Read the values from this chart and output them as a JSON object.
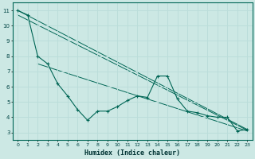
{
  "xlabel": "Humidex (Indice chaleur)",
  "background_color": "#cce8e4",
  "grid_color": "#bbddda",
  "line_color": "#006655",
  "xlim": [
    -0.5,
    23.5
  ],
  "ylim": [
    2.5,
    11.5
  ],
  "yticks": [
    3,
    4,
    5,
    6,
    7,
    8,
    9,
    10,
    11
  ],
  "xticks": [
    0,
    1,
    2,
    3,
    4,
    5,
    6,
    7,
    8,
    9,
    10,
    11,
    12,
    13,
    14,
    15,
    16,
    17,
    18,
    19,
    20,
    21,
    22,
    23
  ],
  "series1_x": [
    0,
    1,
    2,
    3,
    4,
    5,
    6,
    7,
    8,
    9,
    10,
    11,
    12,
    13,
    14,
    15,
    16,
    17,
    18,
    19,
    20,
    21,
    22,
    23
  ],
  "series1_y": [
    11.0,
    10.7,
    8.0,
    7.5,
    6.2,
    5.4,
    4.5,
    3.8,
    4.4,
    4.4,
    4.7,
    5.1,
    5.4,
    5.3,
    6.7,
    6.7,
    5.2,
    4.4,
    4.3,
    4.1,
    4.0,
    4.0,
    3.1,
    3.2
  ],
  "trend1_x": [
    0,
    23
  ],
  "trend1_y": [
    11.0,
    3.2
  ],
  "trend2_x": [
    0,
    23
  ],
  "trend2_y": [
    10.7,
    3.15
  ],
  "trend3_x": [
    2,
    23
  ],
  "trend3_y": [
    7.5,
    3.1
  ]
}
